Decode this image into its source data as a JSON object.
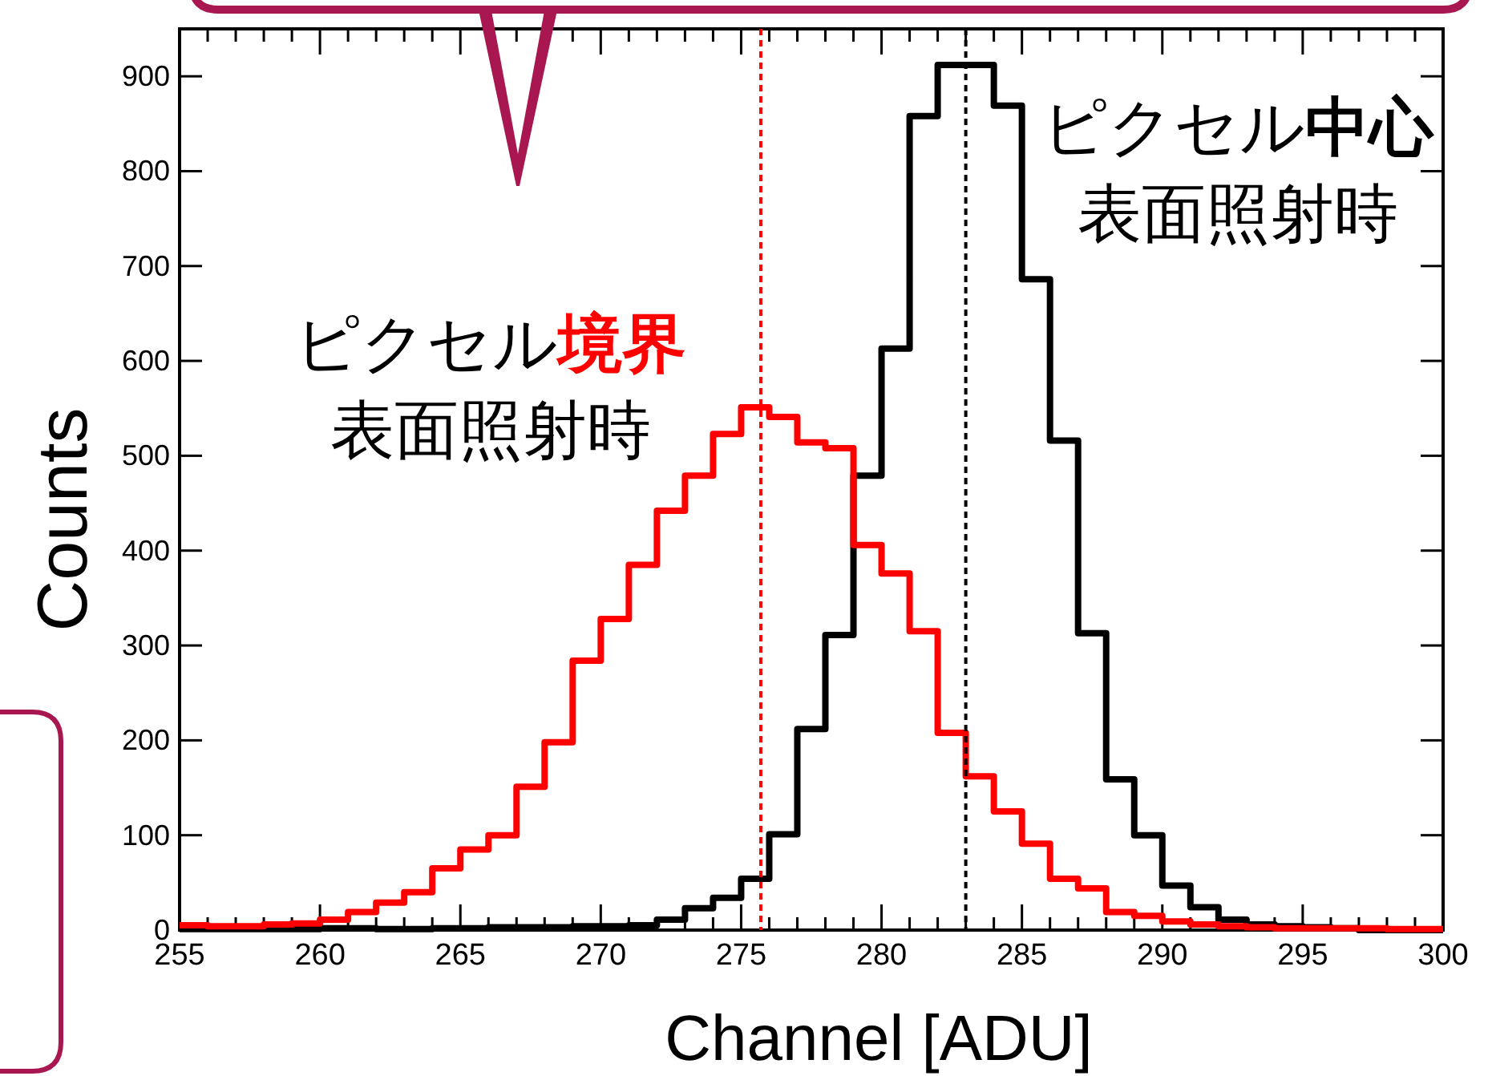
{
  "chart_data": {
    "type": "histogram",
    "xlabel": "Channel [ADU]",
    "ylabel": "Counts",
    "bins": [
      255,
      256,
      257,
      258,
      259,
      260,
      261,
      262,
      263,
      264,
      265,
      266,
      267,
      268,
      269,
      270,
      271,
      272,
      273,
      274,
      275,
      276,
      277,
      278,
      279,
      280,
      281,
      282,
      283,
      284,
      285,
      286,
      287,
      288,
      289,
      290,
      291,
      292,
      293,
      294,
      295,
      296,
      297,
      298,
      299,
      300
    ],
    "series": [
      {
        "color": "#000000",
        "values": [
          1,
          1,
          1,
          1,
          1,
          2,
          2,
          1,
          1,
          2,
          2,
          3,
          3,
          3,
          4,
          4,
          5,
          11,
          23,
          34,
          54,
          101,
          212,
          311,
          479,
          613,
          858,
          912,
          912,
          869,
          686,
          516,
          313,
          159,
          100,
          47,
          24,
          11,
          6,
          4,
          3,
          2,
          0,
          0,
          0
        ]
      },
      {
        "color": "#ff0000",
        "values": [
          5,
          4,
          4,
          6,
          7,
          11,
          19,
          29,
          40,
          65,
          85,
          100,
          151,
          198,
          284,
          328,
          385,
          442,
          479,
          523,
          551,
          541,
          514,
          508,
          406,
          376,
          315,
          208,
          162,
          125,
          91,
          54,
          44,
          19,
          15,
          9,
          6,
          4,
          3,
          2,
          2,
          2,
          2,
          1,
          1
        ]
      }
    ],
    "xlim": [
      255,
      300
    ],
    "ylim": [
      0,
      950
    ],
    "xticks": [
      255,
      260,
      265,
      270,
      275,
      280,
      285,
      290,
      295,
      300
    ],
    "yticks": [
      0,
      100,
      200,
      300,
      400,
      500,
      600,
      700,
      800,
      900
    ],
    "ref_lines": [
      {
        "axis": "x",
        "value": 275.7,
        "color": "#ff0000",
        "line_style": "dotted"
      },
      {
        "axis": "x",
        "value": 283.0,
        "color": "#000000",
        "line_style": "dotted"
      }
    ],
    "annotations": [
      "ピクセル境界",
      "表面照射時",
      "ピクセル中心",
      "表面照射時"
    ],
    "grid": false
  }
}
